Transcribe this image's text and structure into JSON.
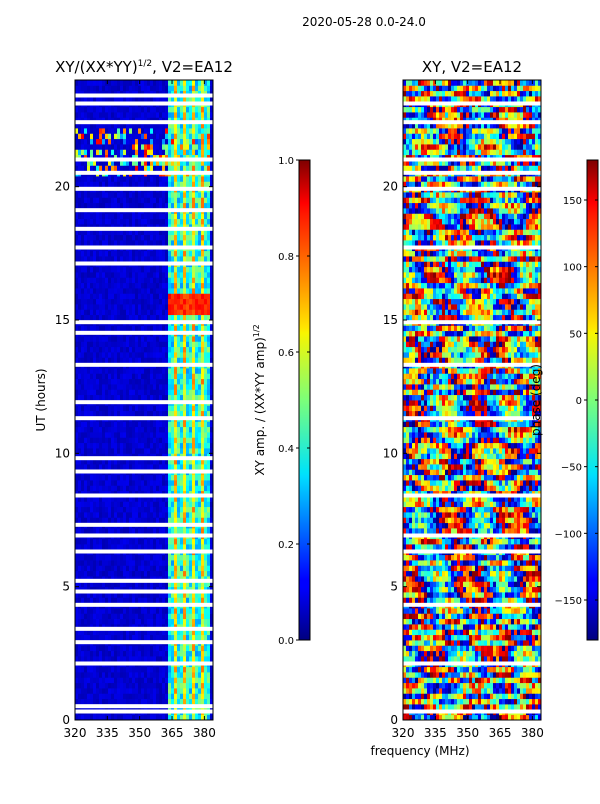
{
  "figure": {
    "suptitle": "2020-05-28 0.0-24.0",
    "shared_xlabel": "frequency (MHz)"
  },
  "chart_data": [
    {
      "type": "heatmap",
      "title": "XY/(XX*YY)",
      "title_exponent": "1/2",
      "title_suffix": ", V2=EA12",
      "xlabel": "",
      "ylabel": "UT (hours)",
      "xlim": [
        320,
        384
      ],
      "ylim": [
        0,
        24
      ],
      "xticks": [
        320,
        335,
        350,
        365,
        380
      ],
      "yticks": [
        0,
        5,
        10,
        15,
        20
      ],
      "colorbar": {
        "label": "XY amp. / (XX*YY amp)",
        "label_exponent": "1/2",
        "range": [
          0.0,
          1.0
        ],
        "ticks": [
          "0.0",
          "0.2",
          "0.4",
          "0.6",
          "0.8",
          "1.0"
        ],
        "tick_values": [
          0.0,
          0.2,
          0.4,
          0.6,
          0.8,
          1.0
        ],
        "colormap": "jet"
      },
      "description_values": {
        "background_level": 0.05,
        "rfi_band_mhz": [
          363,
          382
        ],
        "rfi_level": 0.45,
        "hot_block_ut": [
          15.2,
          15.9
        ],
        "hot_block_level": 0.78,
        "flagged_ut_rows": [
          0.3,
          0.5,
          2.1,
          2.9,
          3.4,
          4.3,
          4.8,
          5.2,
          6.3,
          6.9,
          7.3,
          8.4,
          9.3,
          9.8,
          11.3,
          11.9,
          13.3,
          14.5,
          14.9,
          17.1,
          17.7,
          18.4,
          19.1,
          19.9,
          20.5,
          21.0,
          22.4,
          23.1,
          23.4
        ]
      }
    },
    {
      "type": "heatmap",
      "title": "XY, V2=EA12",
      "xlabel": "",
      "ylabel": "",
      "xlim": [
        320,
        384
      ],
      "ylim": [
        0,
        24
      ],
      "xticks": [
        320,
        335,
        350,
        365,
        380
      ],
      "yticks": [
        0,
        5,
        10,
        15,
        20
      ],
      "colorbar": {
        "label": "phase (deg)",
        "range": [
          -180,
          180
        ],
        "ticks": [
          "−150",
          "−100",
          "−50",
          "0",
          "50",
          "100",
          "150"
        ],
        "tick_values": [
          -150,
          -100,
          -50,
          0,
          50,
          100,
          150
        ],
        "colormap": "jet"
      },
      "description_values": {
        "phase_distribution": "noisy, full range -180 to 180",
        "flagged_ut_rows": [
          0.3,
          2.1,
          4.3,
          6.3,
          6.9,
          8.4,
          11.3,
          13.3,
          14.9,
          17.7,
          19.9,
          20.5,
          21.0,
          22.4,
          23.1
        ]
      }
    }
  ]
}
